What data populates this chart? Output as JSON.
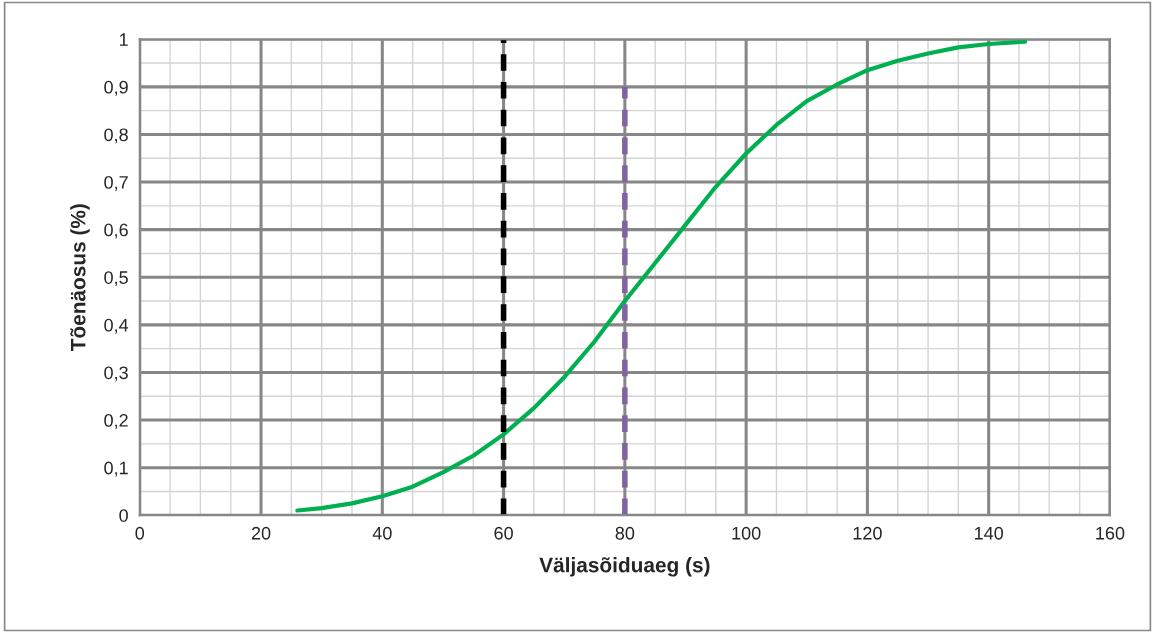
{
  "chart_data": {
    "type": "line",
    "xlabel": "Väljasõiduaeg (s)",
    "ylabel": "Tõenäosus (%)",
    "xlim": [
      0,
      160
    ],
    "xticks": [
      0,
      20,
      40,
      60,
      80,
      100,
      120,
      140,
      160
    ],
    "ylim": [
      0,
      1
    ],
    "yticks": [
      0,
      {
        "value": 0.1,
        "label": "0,1"
      },
      {
        "value": 0.2,
        "label": "0,2"
      },
      {
        "value": 0.3,
        "label": "0,3"
      },
      {
        "value": 0.4,
        "label": "0,4"
      },
      {
        "value": 0.5,
        "label": "0,5"
      },
      {
        "value": 0.6,
        "label": "0,6"
      },
      {
        "value": 0.7,
        "label": "0,7"
      },
      {
        "value": 0.8,
        "label": "0,8"
      },
      {
        "value": 0.9,
        "label": "0,9"
      },
      1
    ],
    "grid": true,
    "legend": false,
    "series": [
      {
        "color": "#00b050",
        "line_style": "solid",
        "x": [
          26,
          30,
          35,
          40,
          45,
          50,
          55,
          60,
          65,
          70,
          75,
          80,
          85,
          90,
          95,
          100,
          105,
          110,
          115,
          120,
          125,
          130,
          135,
          140,
          146
        ],
        "values": [
          0.01,
          0.015,
          0.025,
          0.04,
          0.06,
          0.09,
          0.125,
          0.17,
          0.225,
          0.29,
          0.365,
          0.45,
          0.53,
          0.61,
          0.69,
          0.76,
          0.82,
          0.87,
          0.905,
          0.935,
          0.955,
          0.97,
          0.983,
          0.99,
          0.995
        ]
      },
      {
        "color": "#000000",
        "line_style": "dashed",
        "x": [
          60,
          60
        ],
        "values": [
          0,
          1
        ]
      },
      {
        "color": "#8064a2",
        "line_style": "dashed",
        "x": [
          80,
          80
        ],
        "values": [
          0,
          0.9
        ]
      }
    ]
  }
}
